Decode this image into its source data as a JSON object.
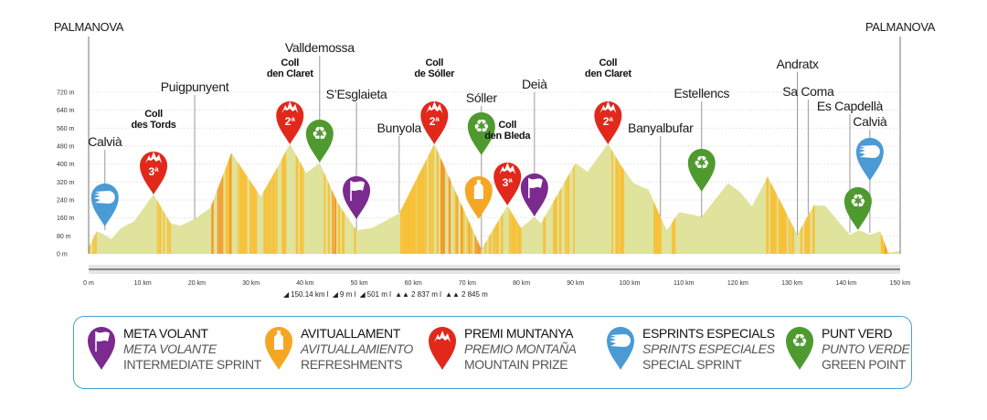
{
  "colors": {
    "sprint": "#7b2a8e",
    "refresh": "#f5a623",
    "mountain": "#e2271b",
    "special": "#4a9ad4",
    "green": "#4f9a2f",
    "profile": "#dfe39c",
    "climb": [
      "#f7c23a",
      "#f59b2a",
      "#ec6a24",
      "#e2271b"
    ]
  },
  "chart_data": {
    "type": "area",
    "xlabel": "",
    "ylabel": "",
    "xlim": [
      0,
      150
    ],
    "ylim": [
      0,
      720
    ],
    "x_ticks": [
      "0 m",
      "10 km",
      "20 km",
      "30 km",
      "40 km",
      "50 km",
      "60 km",
      "70 km",
      "80 km",
      "90 km",
      "100 km",
      "110 km",
      "120 km",
      "130 km",
      "140 km",
      "150 km"
    ],
    "y_ticks": [
      "0 m",
      "80 m",
      "160 m",
      "240 m",
      "320 m",
      "400 m",
      "480 m",
      "560 m",
      "640 m",
      "720 m"
    ],
    "grid": true,
    "profile": [
      [
        0,
        30
      ],
      [
        1.5,
        100
      ],
      [
        2.5,
        90
      ],
      [
        4.2,
        65
      ],
      [
        6,
        115
      ],
      [
        8.4,
        145
      ],
      [
        12,
        265
      ],
      [
        15.2,
        135
      ],
      [
        17,
        125
      ],
      [
        19.6,
        155
      ],
      [
        22.5,
        205
      ],
      [
        26.4,
        450
      ],
      [
        31.8,
        255
      ],
      [
        34.3,
        360
      ],
      [
        37.2,
        490
      ],
      [
        40.2,
        360
      ],
      [
        42.7,
        405
      ],
      [
        46.1,
        225
      ],
      [
        49.5,
        105
      ],
      [
        52.4,
        115
      ],
      [
        57.4,
        180
      ],
      [
        63.9,
        490
      ],
      [
        68.6,
        235
      ],
      [
        72.6,
        20
      ],
      [
        77.4,
        215
      ],
      [
        79.9,
        115
      ],
      [
        82.4,
        165
      ],
      [
        83.6,
        135
      ],
      [
        90,
        405
      ],
      [
        92.2,
        365
      ],
      [
        96,
        490
      ],
      [
        98.5,
        390
      ],
      [
        100.7,
        315
      ],
      [
        103.5,
        285
      ],
      [
        105.7,
        165
      ],
      [
        106.9,
        105
      ],
      [
        109.1,
        185
      ],
      [
        111.5,
        175
      ],
      [
        113.3,
        165
      ],
      [
        118.2,
        315
      ],
      [
        120.4,
        275
      ],
      [
        122.6,
        210
      ],
      [
        125.5,
        345
      ],
      [
        131,
        85
      ],
      [
        134,
        215
      ],
      [
        136.1,
        215
      ],
      [
        140.7,
        85
      ],
      [
        142.4,
        105
      ],
      [
        144.4,
        85
      ],
      [
        146.3,
        100
      ],
      [
        147.8,
        5
      ],
      [
        149.7,
        12
      ],
      [
        150,
        12
      ]
    ],
    "start_label": "PALMANOVA",
    "finish_label": "PALMANOVA",
    "waypoints": [
      {
        "name": "Calvià",
        "km": 3,
        "markers": [
          {
            "type": "special"
          }
        ]
      },
      {
        "name": "Coll",
        "name2": "des Tords",
        "km": 12,
        "climb": true,
        "markers": [
          {
            "type": "mountain",
            "grade": "3ª"
          }
        ]
      },
      {
        "name": "Puigpunyent",
        "km": 19.6,
        "markers": []
      },
      {
        "name": "Coll",
        "name2": "den Claret",
        "km": 37.2,
        "climb": true,
        "markers": [
          {
            "type": "mountain",
            "grade": "2ª"
          }
        ]
      },
      {
        "name": "Valldemossa",
        "km": 42.7,
        "markers": [
          {
            "type": "green"
          }
        ]
      },
      {
        "name": "S’Esglaieta",
        "km": 49.5,
        "markers": [
          {
            "type": "sprint"
          }
        ]
      },
      {
        "name": "Bunyola",
        "km": 57.4,
        "markers": []
      },
      {
        "name": "Coll",
        "name2": "de Sóller",
        "km": 63.9,
        "climb": true,
        "markers": [
          {
            "type": "mountain",
            "grade": "2ª"
          }
        ]
      },
      {
        "name": "Sóller",
        "km": 72.6,
        "markers": [
          {
            "type": "green"
          },
          {
            "type": "refresh"
          }
        ]
      },
      {
        "name": "Coll",
        "name2": "den Bleda",
        "km": 77.4,
        "climb": true,
        "markers": [
          {
            "type": "mountain",
            "grade": "3ª"
          }
        ]
      },
      {
        "name": "Deià",
        "km": 82.4,
        "markers": [
          {
            "type": "sprint"
          }
        ]
      },
      {
        "name": "Coll",
        "name2": "den Claret",
        "km": 96,
        "climb": true,
        "markers": [
          {
            "type": "mountain",
            "grade": "2ª"
          }
        ]
      },
      {
        "name": "Banyalbufar",
        "km": 105.7,
        "markers": []
      },
      {
        "name": "Estellencs",
        "km": 113.3,
        "markers": [
          {
            "type": "green"
          }
        ]
      },
      {
        "name": "Andratx",
        "km": 131,
        "markers": []
      },
      {
        "name": "Sa Coma",
        "km": 133,
        "markers": []
      },
      {
        "name": "Es Capdellà",
        "km": 140.7,
        "markers": []
      },
      {
        "name": "Calvià",
        "km": 144.4,
        "markers": [
          {
            "type": "special"
          },
          {
            "type": "green"
          }
        ]
      }
    ]
  },
  "stats": [
    "150.14 km l",
    "9 m l",
    "501 m l",
    "2 837 m l",
    "2 845 m"
  ],
  "legend": [
    {
      "type": "sprint",
      "l1": "META VOLANT",
      "l2": "META VOLANTE",
      "l3": "INTERMEDIATE SPRINT"
    },
    {
      "type": "refresh",
      "l1": "AVITUALLAMENT",
      "l2": "AVITUALLAMIENTO",
      "l3": "REFRESHMENTS"
    },
    {
      "type": "mountain",
      "l1": "PREMI MUNTANYA",
      "l2": "PREMIO MONTAÑA",
      "l3": "MOUNTAIN PRIZE"
    },
    {
      "type": "special",
      "l1": "ESPRINTS ESPECIALS",
      "l2": "SPRINTS ESPECIALES",
      "l3": "SPECIAL SPRINT"
    },
    {
      "type": "green",
      "l1": "PUNT VERD",
      "l2": "PUNTO VERDE",
      "l3": "GREEN POINT"
    }
  ]
}
